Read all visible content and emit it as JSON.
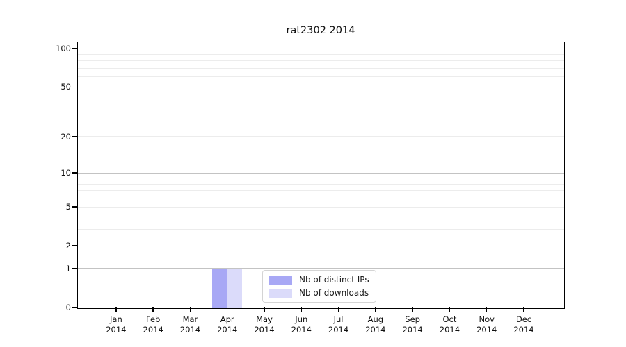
{
  "chart_data": {
    "type": "bar",
    "title": "rat2302 2014",
    "categories": [
      "Jan",
      "Feb",
      "Mar",
      "Apr",
      "May",
      "Jun",
      "Jul",
      "Aug",
      "Sep",
      "Oct",
      "Nov",
      "Dec"
    ],
    "category_year": "2014",
    "series": [
      {
        "name": "Nb of distinct IPs",
        "color": "#a8a8f5",
        "values": [
          0,
          0,
          0,
          1,
          0,
          0,
          0,
          0,
          0,
          0,
          0,
          0
        ]
      },
      {
        "name": "Nb of downloads",
        "color": "#dbdbfa",
        "values": [
          0,
          0,
          0,
          1,
          0,
          0,
          0,
          0,
          0,
          0,
          0,
          0
        ]
      }
    ],
    "xlabel": "",
    "ylabel": "",
    "yscale": "log1p",
    "ylim": [
      0,
      112
    ],
    "y_ticks": [
      0,
      1,
      2,
      5,
      10,
      20,
      50,
      100
    ],
    "major_gridlines": [
      1,
      10,
      100
    ],
    "minor_gridlines": [
      2,
      3,
      4,
      5,
      6,
      7,
      8,
      9,
      20,
      30,
      40,
      50,
      60,
      70,
      80,
      90
    ],
    "xlim": [
      -1.03,
      12.07
    ],
    "bar_width": 0.4,
    "grid": true,
    "legend": {
      "position": "lower center"
    },
    "colors": {
      "major_grid": "#c3c3c3",
      "minor_grid": "#ececec",
      "axis": "#000000",
      "legend_border": "#d4d4d4",
      "text": "#111111"
    }
  }
}
